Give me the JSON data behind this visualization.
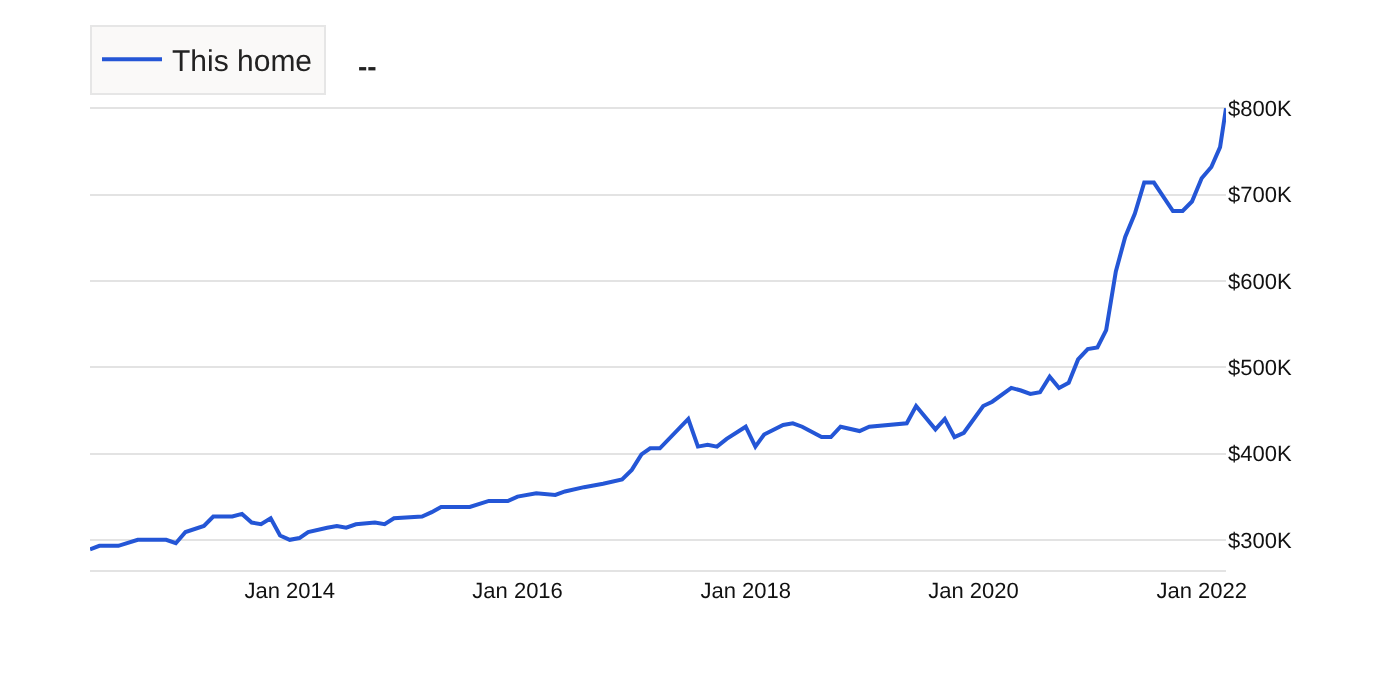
{
  "chart_data": {
    "type": "line",
    "x": [
      "2012-04",
      "2012-05",
      "2012-07",
      "2012-09",
      "2012-12",
      "2013-01",
      "2013-02",
      "2013-04",
      "2013-05",
      "2013-07",
      "2013-08",
      "2013-09",
      "2013-10",
      "2013-11",
      "2013-12",
      "2014-01",
      "2014-02",
      "2014-03",
      "2014-05",
      "2014-06",
      "2014-07",
      "2014-08",
      "2014-10",
      "2014-11",
      "2014-12",
      "2015-03",
      "2015-04",
      "2015-05",
      "2015-06",
      "2015-08",
      "2015-10",
      "2015-12",
      "2016-01",
      "2016-03",
      "2016-05",
      "2016-06",
      "2016-08",
      "2016-10",
      "2016-12",
      "2017-01",
      "2017-02",
      "2017-03",
      "2017-04",
      "2017-07",
      "2017-08",
      "2017-09",
      "2017-10",
      "2017-11",
      "2018-01",
      "2018-02",
      "2018-03",
      "2018-05",
      "2018-06",
      "2018-07",
      "2018-09",
      "2018-10",
      "2018-11",
      "2019-01",
      "2019-02",
      "2019-06",
      "2019-07",
      "2019-09",
      "2019-10",
      "2019-11",
      "2019-12",
      "2020-02",
      "2020-03",
      "2020-05",
      "2020-06",
      "2020-07",
      "2020-08",
      "2020-09",
      "2020-10",
      "2020-11",
      "2020-12",
      "2021-01",
      "2021-02",
      "2021-03",
      "2021-04",
      "2021-05",
      "2021-06",
      "2021-07",
      "2021-08",
      "2021-10",
      "2021-11",
      "2021-12",
      "2022-01",
      "2022-02",
      "2022-03",
      "2022-03-20"
    ],
    "series": [
      {
        "name": "This home",
        "color": "#2456d6",
        "values": [
          289,
          293,
          293,
          300,
          300,
          296,
          309,
          316,
          327,
          327,
          330,
          320,
          318,
          325,
          305,
          300,
          302,
          309,
          314,
          316,
          314,
          318,
          320,
          318,
          325,
          327,
          332,
          338,
          338,
          338,
          345,
          345,
          350,
          354,
          352,
          356,
          361,
          365,
          370,
          381,
          399,
          406,
          406,
          440,
          408,
          410,
          408,
          417,
          431,
          408,
          422,
          433,
          435,
          431,
          419,
          419,
          431,
          426,
          431,
          435,
          455,
          428,
          440,
          419,
          424,
          455,
          460,
          476,
          473,
          469,
          471,
          489,
          476,
          482,
          509,
          521,
          523,
          543,
          611,
          651,
          678,
          714,
          714,
          681,
          681,
          692,
          719,
          732,
          755,
          800
        ]
      }
    ],
    "annotations": [
      "--"
    ],
    "xlim": [
      "2012-04",
      "2022-03-20"
    ],
    "xticks": [
      {
        "value": "2014-01",
        "label": "Jan 2014"
      },
      {
        "value": "2016-01",
        "label": "Jan 2016"
      },
      {
        "value": "2018-01",
        "label": "Jan 2018"
      },
      {
        "value": "2020-01",
        "label": "Jan 2020"
      },
      {
        "value": "2022-01",
        "label": "Jan 2022"
      }
    ],
    "ylim": [
      265,
      805
    ],
    "yticks": [
      {
        "value": 300,
        "label": "$300K"
      },
      {
        "value": 400,
        "label": "$400K"
      },
      {
        "value": 500,
        "label": "$500K"
      },
      {
        "value": 600,
        "label": "$600K"
      },
      {
        "value": 700,
        "label": "$700K"
      },
      {
        "value": 800,
        "label": "$800K"
      }
    ],
    "grid": "y",
    "legend": "top left",
    "marker": "none",
    "line_style": "solid"
  }
}
